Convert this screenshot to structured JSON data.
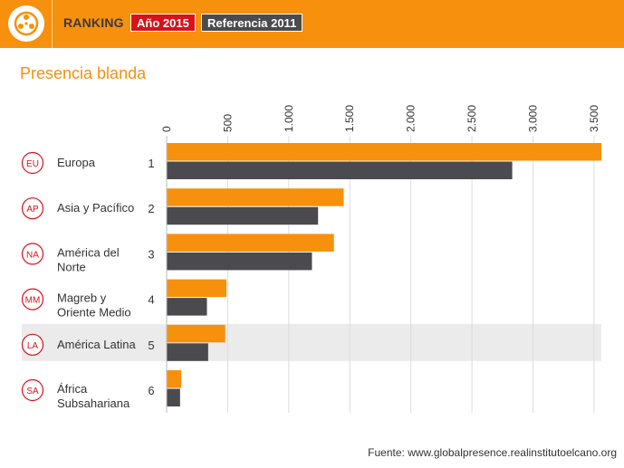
{
  "header": {
    "logo_icon": "globe-icon",
    "title": "RANKING",
    "toggle_2015": "Año 2015",
    "toggle_2011": "Referencia 2011"
  },
  "subtitle": "Presencia blanda",
  "source": "Fuente: www.globalpresence.realinstitutoelcano.org",
  "colors": {
    "accent": "#f7900d",
    "series_2015": "#f7900d",
    "series_2011": "#4a4a4f",
    "badge": "#d9111b",
    "highlight_row": "#ebebeb"
  },
  "chart_data": {
    "type": "bar",
    "orientation": "horizontal",
    "categories": [
      "Europa",
      "Asia y Pacífico",
      "América del Norte",
      "Magreb y Oriente Medio",
      "América Latina",
      "África Subsahariana"
    ],
    "category_lines": [
      [
        "Europa"
      ],
      [
        "Asia y Pacífico"
      ],
      [
        "América del",
        "Norte"
      ],
      [
        "Magreb y",
        "Oriente Medio"
      ],
      [
        "América Latina"
      ],
      [
        "África",
        "Subsahariana"
      ]
    ],
    "codes": [
      "EU",
      "AP",
      "NA",
      "MM",
      "LA",
      "SA"
    ],
    "ranks": [
      "1",
      "2",
      "3",
      "4",
      "5",
      "6"
    ],
    "series": [
      {
        "name": "Año 2015",
        "values": [
          3560,
          1450,
          1370,
          490,
          480,
          120
        ]
      },
      {
        "name": "Referencia 2011",
        "values": [
          2830,
          1240,
          1190,
          330,
          340,
          110
        ]
      }
    ],
    "xlim": [
      0,
      3560
    ],
    "xticks": [
      0,
      500,
      1000,
      1500,
      2000,
      2500,
      3000,
      3500
    ],
    "xtick_labels": [
      "0",
      "500",
      "1.000",
      "1.500",
      "2.000",
      "2.500",
      "3.000",
      "3.500"
    ],
    "grid": true,
    "axis_position": "top",
    "highlighted_category": "América Latina"
  }
}
